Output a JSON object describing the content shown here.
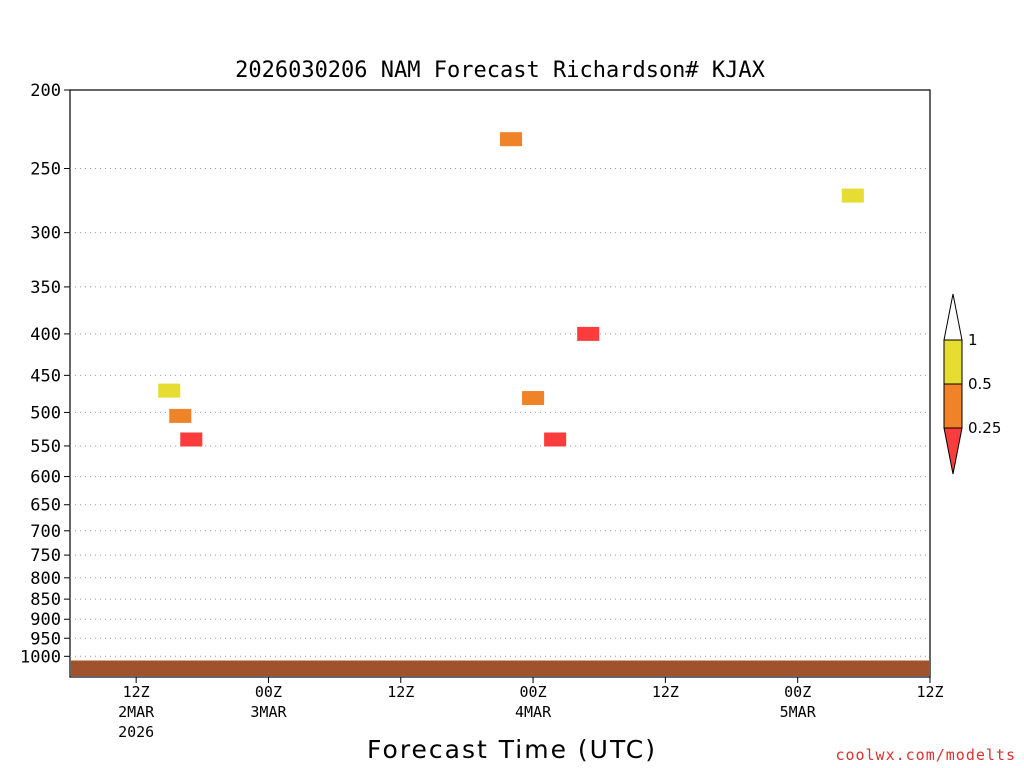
{
  "chart_data": {
    "type": "heatmap",
    "title": "2026030206 NAM Forecast Richardson# KJAX",
    "xlabel": "Forecast Time (UTC)",
    "ylabel": "",
    "y_ticks": [
      "200",
      "250",
      "300",
      "350",
      "400",
      "450",
      "500",
      "550",
      "600",
      "650",
      "700",
      "750",
      "800",
      "850",
      "900",
      "950",
      "1000"
    ],
    "y_tick_values": [
      200,
      250,
      300,
      350,
      400,
      450,
      500,
      550,
      600,
      650,
      700,
      750,
      800,
      850,
      900,
      950,
      1000
    ],
    "y_range": [
      200,
      1025
    ],
    "x_range_hours": [
      6,
      84
    ],
    "x_ticks": [
      {
        "hour": 12,
        "time": "12Z",
        "date": "2MAR",
        "year": "2026"
      },
      {
        "hour": 24,
        "time": "00Z",
        "date": "3MAR",
        "year": ""
      },
      {
        "hour": 36,
        "time": "12Z",
        "date": "",
        "year": ""
      },
      {
        "hour": 48,
        "time": "00Z",
        "date": "4MAR",
        "year": ""
      },
      {
        "hour": 60,
        "time": "12Z",
        "date": "",
        "year": ""
      },
      {
        "hour": 72,
        "time": "00Z",
        "date": "5MAR",
        "year": ""
      },
      {
        "hour": 84,
        "time": "12Z",
        "date": "",
        "year": ""
      }
    ],
    "colorbar": {
      "labels": [
        "1",
        "0.5",
        "0.25"
      ],
      "bins": [
        {
          "range": ">1",
          "color": "#ffffff"
        },
        {
          "range": "0.5-1",
          "color": "#e6dc32"
        },
        {
          "range": "0.25-0.5",
          "color": "#f08228"
        },
        {
          "range": "<0.25",
          "color": "#fa3c3c"
        }
      ]
    },
    "cells": [
      {
        "level": "mid",
        "hour": 14,
        "p": 470,
        "cat": "0.5-1"
      },
      {
        "level": "mid",
        "hour": 15,
        "p": 505,
        "cat": "0.25-0.5"
      },
      {
        "level": "mid",
        "hour": 16,
        "p": 540,
        "cat": "<0.25"
      },
      {
        "level": "mid",
        "hour": 47,
        "p": 480,
        "cat": "0.25-0.5"
      },
      {
        "level": "mid",
        "hour": 49,
        "p": 540,
        "cat": "<0.25"
      },
      {
        "level": "mid",
        "hour": 52,
        "p": 400,
        "cat": "<0.25"
      },
      {
        "level": "upper",
        "hour": 45,
        "p": 230,
        "cat": "0.25-0.5"
      },
      {
        "level": "upper",
        "hour": 76,
        "p": 270,
        "cat": "0.5-1"
      }
    ],
    "ground_color": "#a0522d"
  },
  "watermark": "coolwx.com/modelts"
}
